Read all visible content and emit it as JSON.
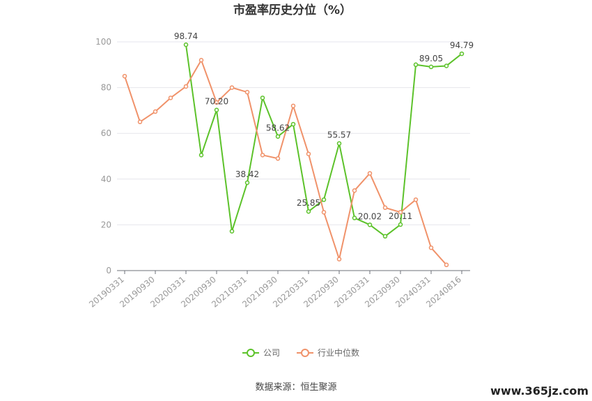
{
  "chart_data": {
    "type": "line",
    "title": "市盈率历史分位（%）",
    "xlabel": "",
    "ylabel": "",
    "ylim": [
      0,
      100
    ],
    "y_ticks": [
      0,
      20,
      40,
      60,
      80,
      100
    ],
    "grid": true,
    "legend_position": "bottom",
    "categories": [
      "20190331",
      "20190630",
      "20190930",
      "20191231",
      "20200331",
      "20200630",
      "20200930",
      "20201231",
      "20210331",
      "20210630",
      "20210930",
      "20211231",
      "20220331",
      "20220630",
      "20220930",
      "20221231",
      "20230331",
      "20230630",
      "20230930",
      "20231231",
      "20240331",
      "20240630",
      "20240816"
    ],
    "x_tick_labels": [
      "20190331",
      "20190930",
      "20200331",
      "20200930",
      "20210331",
      "20210930",
      "20220331",
      "20220930",
      "20230331",
      "20230930",
      "20240331",
      "20240816"
    ],
    "series": [
      {
        "name": "公司",
        "color": "#5cc22a",
        "values": [
          null,
          null,
          null,
          null,
          98.74,
          50.5,
          70.2,
          17.2,
          38.42,
          75.5,
          58.62,
          64.0,
          25.85,
          31.0,
          55.57,
          23.0,
          20.02,
          15.0,
          20.11,
          90.0,
          89.05,
          89.5,
          94.79
        ]
      },
      {
        "name": "行业中位数",
        "color": "#f0926a",
        "values": [
          85.0,
          65.0,
          69.5,
          75.5,
          80.5,
          92.0,
          73.5,
          80.0,
          78.0,
          50.5,
          49.0,
          72.0,
          51.0,
          25.5,
          5.0,
          35.0,
          42.5,
          27.5,
          25.5,
          31.0,
          10.0,
          2.5,
          null
        ]
      }
    ],
    "data_labels": [
      {
        "series": 0,
        "index": 4,
        "text": "98.74"
      },
      {
        "series": 0,
        "index": 6,
        "text": "70.20"
      },
      {
        "series": 0,
        "index": 8,
        "text": "38.42"
      },
      {
        "series": 0,
        "index": 10,
        "text": "58.62"
      },
      {
        "series": 0,
        "index": 12,
        "text": "25.85"
      },
      {
        "series": 0,
        "index": 14,
        "text": "55.57"
      },
      {
        "series": 0,
        "index": 16,
        "text": "20.02"
      },
      {
        "series": 0,
        "index": 18,
        "text": "20.11"
      },
      {
        "series": 0,
        "index": 20,
        "text": "89.05"
      },
      {
        "series": 0,
        "index": 22,
        "text": "94.79"
      }
    ]
  },
  "footer": {
    "source": "数据来源：恒生聚源",
    "watermark": "www.365jz.com"
  }
}
